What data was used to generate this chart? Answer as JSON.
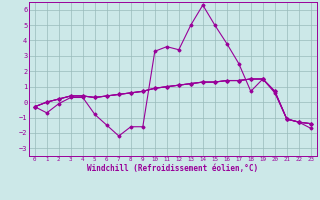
{
  "xlabel": "Windchill (Refroidissement éolien,°C)",
  "bg_color": "#cce8e8",
  "line_color": "#990099",
  "grid_color": "#99bbbb",
  "xlim": [
    -0.5,
    23.5
  ],
  "ylim": [
    -3.5,
    6.5
  ],
  "xticks": [
    0,
    1,
    2,
    3,
    4,
    5,
    6,
    7,
    8,
    9,
    10,
    11,
    12,
    13,
    14,
    15,
    16,
    17,
    18,
    19,
    20,
    21,
    22,
    23
  ],
  "yticks": [
    -3,
    -2,
    -1,
    0,
    1,
    2,
    3,
    4,
    5,
    6
  ],
  "lines": [
    {
      "x": [
        0,
        1,
        2,
        3,
        4,
        5,
        6,
        7,
        8,
        9,
        10,
        11,
        12,
        13,
        14,
        15,
        16,
        17,
        18,
        19,
        20,
        21,
        22,
        23
      ],
      "y": [
        -0.3,
        -0.7,
        -0.1,
        0.3,
        0.3,
        -0.8,
        -1.5,
        -2.2,
        -1.6,
        -1.6,
        3.3,
        3.6,
        3.4,
        5.0,
        6.3,
        5.0,
        3.8,
        2.5,
        0.7,
        1.5,
        0.6,
        -1.1,
        -1.3,
        -1.7
      ]
    },
    {
      "x": [
        0,
        1,
        2,
        3,
        4,
        5,
        6,
        7,
        8,
        9,
        10,
        11,
        12,
        13,
        14,
        15,
        16,
        17,
        18,
        19,
        20,
        21,
        22,
        23
      ],
      "y": [
        -0.3,
        0.0,
        0.2,
        0.4,
        0.4,
        0.3,
        0.4,
        0.5,
        0.6,
        0.7,
        0.9,
        1.0,
        1.1,
        1.2,
        1.3,
        1.3,
        1.4,
        1.4,
        1.5,
        1.5,
        0.7,
        -1.1,
        -1.3,
        -1.4
      ]
    },
    {
      "x": [
        0,
        1,
        2,
        3,
        4,
        5,
        6,
        7,
        8,
        9,
        10,
        11,
        12,
        13,
        14,
        15,
        16,
        17,
        18,
        19,
        20,
        21,
        22,
        23
      ],
      "y": [
        -0.3,
        0.0,
        0.2,
        0.4,
        0.4,
        0.3,
        0.4,
        0.5,
        0.6,
        0.7,
        0.9,
        1.0,
        1.1,
        1.2,
        1.3,
        1.3,
        1.4,
        1.4,
        1.5,
        1.5,
        0.7,
        -1.1,
        -1.3,
        -1.4
      ]
    },
    {
      "x": [
        0,
        1,
        2,
        3,
        4,
        5,
        6,
        7,
        8,
        9,
        10,
        11,
        12,
        13,
        14,
        15,
        16,
        17,
        18,
        19,
        20,
        21,
        22,
        23
      ],
      "y": [
        -0.3,
        0.0,
        0.2,
        0.4,
        0.4,
        0.3,
        0.4,
        0.5,
        0.6,
        0.7,
        0.9,
        1.0,
        1.1,
        1.2,
        1.3,
        1.3,
        1.4,
        1.4,
        1.5,
        1.5,
        0.7,
        -1.1,
        -1.3,
        -1.4
      ]
    }
  ]
}
